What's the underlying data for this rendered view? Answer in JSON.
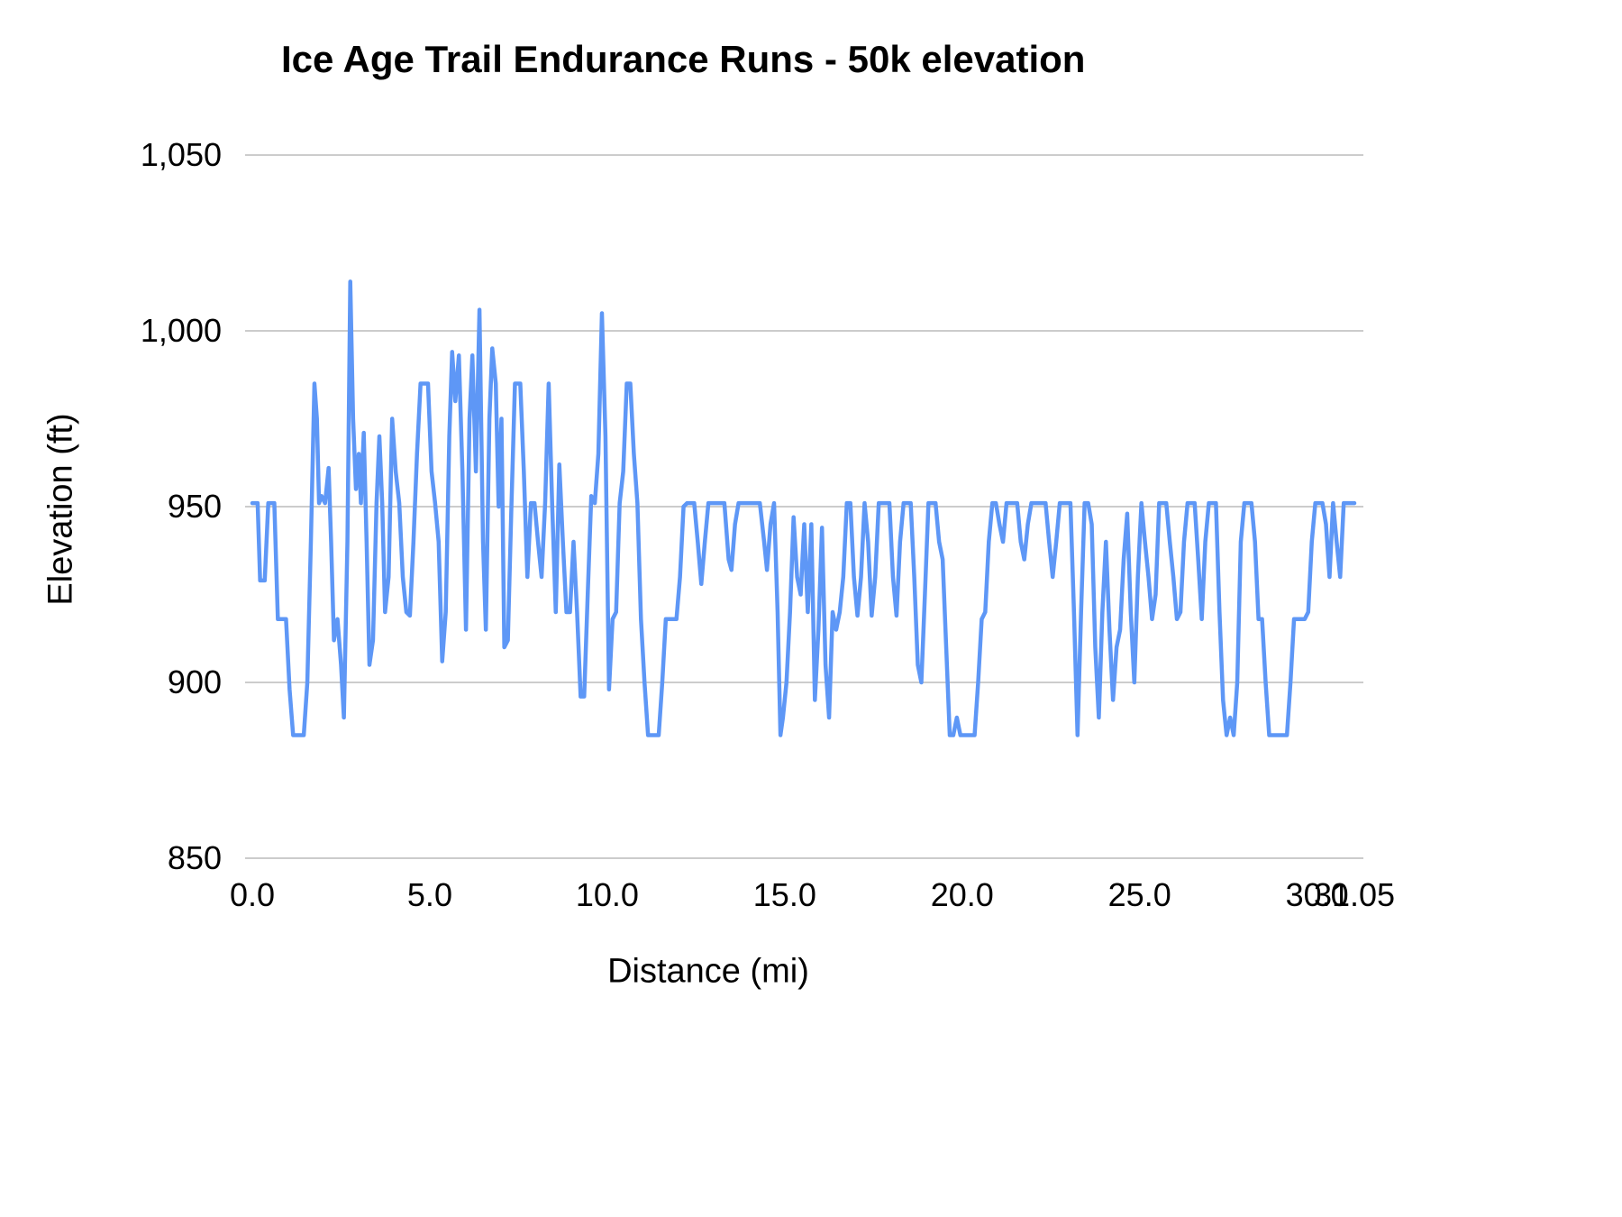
{
  "chart_data": {
    "type": "line",
    "title": "Ice Age Trail Endurance Runs - 50k elevation",
    "xlabel": "Distance (mi)",
    "ylabel": "Elevation (ft)",
    "xlim": [
      0,
      31.05
    ],
    "ylim": [
      850,
      1050
    ],
    "grid": true,
    "legend": "none",
    "line_color": "#5e97f6",
    "grid_color": "#cccccc",
    "text_color": "#000000",
    "y_ticks": [
      {
        "value": 850,
        "label": "850"
      },
      {
        "value": 900,
        "label": "900"
      },
      {
        "value": 950,
        "label": "950"
      },
      {
        "value": 1000,
        "label": "1,000"
      },
      {
        "value": 1050,
        "label": "1,050"
      }
    ],
    "x_ticks": [
      {
        "value": 0.0,
        "label": "0.0"
      },
      {
        "value": 5.0,
        "label": "5.0"
      },
      {
        "value": 10.0,
        "label": "10.0"
      },
      {
        "value": 15.0,
        "label": "15.0"
      },
      {
        "value": 20.0,
        "label": "20.0"
      },
      {
        "value": 25.0,
        "label": "25.0"
      },
      {
        "value": 30.0,
        "label": "30.0"
      },
      {
        "value": 31.05,
        "label": "31.05"
      }
    ],
    "series": [
      {
        "name": "elevation",
        "points": [
          [
            0.0,
            951
          ],
          [
            0.15,
            951
          ],
          [
            0.22,
            929
          ],
          [
            0.35,
            929
          ],
          [
            0.45,
            951
          ],
          [
            0.62,
            951
          ],
          [
            0.72,
            918
          ],
          [
            0.95,
            918
          ],
          [
            1.05,
            898
          ],
          [
            1.15,
            885
          ],
          [
            1.45,
            885
          ],
          [
            1.55,
            900
          ],
          [
            1.65,
            940
          ],
          [
            1.75,
            985
          ],
          [
            1.82,
            975
          ],
          [
            1.88,
            951
          ],
          [
            1.95,
            953
          ],
          [
            2.05,
            951
          ],
          [
            2.15,
            961
          ],
          [
            2.22,
            940
          ],
          [
            2.3,
            912
          ],
          [
            2.4,
            918
          ],
          [
            2.5,
            905
          ],
          [
            2.58,
            890
          ],
          [
            2.68,
            940
          ],
          [
            2.76,
            1014
          ],
          [
            2.84,
            975
          ],
          [
            2.92,
            955
          ],
          [
            3.0,
            965
          ],
          [
            3.06,
            951
          ],
          [
            3.14,
            971
          ],
          [
            3.22,
            940
          ],
          [
            3.3,
            905
          ],
          [
            3.4,
            912
          ],
          [
            3.5,
            951
          ],
          [
            3.58,
            970
          ],
          [
            3.66,
            951
          ],
          [
            3.74,
            920
          ],
          [
            3.84,
            930
          ],
          [
            3.94,
            975
          ],
          [
            4.04,
            960
          ],
          [
            4.14,
            951
          ],
          [
            4.24,
            930
          ],
          [
            4.34,
            920
          ],
          [
            4.44,
            919
          ],
          [
            4.54,
            940
          ],
          [
            4.64,
            965
          ],
          [
            4.74,
            985
          ],
          [
            4.95,
            985
          ],
          [
            5.05,
            960
          ],
          [
            5.15,
            951
          ],
          [
            5.25,
            940
          ],
          [
            5.35,
            906
          ],
          [
            5.45,
            920
          ],
          [
            5.55,
            970
          ],
          [
            5.63,
            994
          ],
          [
            5.72,
            980
          ],
          [
            5.82,
            993
          ],
          [
            5.92,
            960
          ],
          [
            6.02,
            915
          ],
          [
            6.12,
            975
          ],
          [
            6.2,
            993
          ],
          [
            6.3,
            960
          ],
          [
            6.4,
            1006
          ],
          [
            6.5,
            940
          ],
          [
            6.58,
            915
          ],
          [
            6.68,
            975
          ],
          [
            6.76,
            995
          ],
          [
            6.86,
            985
          ],
          [
            6.94,
            950
          ],
          [
            7.02,
            975
          ],
          [
            7.1,
            910
          ],
          [
            7.2,
            912
          ],
          [
            7.3,
            950
          ],
          [
            7.4,
            985
          ],
          [
            7.55,
            985
          ],
          [
            7.65,
            960
          ],
          [
            7.75,
            930
          ],
          [
            7.85,
            951
          ],
          [
            7.95,
            951
          ],
          [
            8.05,
            940
          ],
          [
            8.15,
            930
          ],
          [
            8.25,
            951
          ],
          [
            8.35,
            985
          ],
          [
            8.45,
            950
          ],
          [
            8.55,
            920
          ],
          [
            8.65,
            962
          ],
          [
            8.75,
            940
          ],
          [
            8.85,
            920
          ],
          [
            8.95,
            920
          ],
          [
            9.05,
            940
          ],
          [
            9.15,
            920
          ],
          [
            9.25,
            896
          ],
          [
            9.35,
            896
          ],
          [
            9.45,
            925
          ],
          [
            9.55,
            953
          ],
          [
            9.65,
            951
          ],
          [
            9.75,
            965
          ],
          [
            9.85,
            1005
          ],
          [
            9.95,
            970
          ],
          [
            10.05,
            898
          ],
          [
            10.15,
            918
          ],
          [
            10.25,
            920
          ],
          [
            10.35,
            951
          ],
          [
            10.45,
            960
          ],
          [
            10.55,
            985
          ],
          [
            10.65,
            985
          ],
          [
            10.75,
            965
          ],
          [
            10.85,
            951
          ],
          [
            10.95,
            918
          ],
          [
            11.05,
            900
          ],
          [
            11.15,
            885
          ],
          [
            11.45,
            885
          ],
          [
            11.55,
            900
          ],
          [
            11.65,
            918
          ],
          [
            11.95,
            918
          ],
          [
            12.05,
            930
          ],
          [
            12.15,
            950
          ],
          [
            12.25,
            951
          ],
          [
            12.45,
            951
          ],
          [
            12.55,
            940
          ],
          [
            12.65,
            928
          ],
          [
            12.75,
            940
          ],
          [
            12.85,
            951
          ],
          [
            12.95,
            951
          ],
          [
            13.3,
            951
          ],
          [
            13.42,
            935
          ],
          [
            13.5,
            932
          ],
          [
            13.6,
            945
          ],
          [
            13.7,
            951
          ],
          [
            13.95,
            951
          ],
          [
            14.3,
            951
          ],
          [
            14.42,
            940
          ],
          [
            14.5,
            932
          ],
          [
            14.6,
            945
          ],
          [
            14.7,
            951
          ],
          [
            14.8,
            920
          ],
          [
            14.88,
            885
          ],
          [
            14.95,
            890
          ],
          [
            15.05,
            900
          ],
          [
            15.15,
            920
          ],
          [
            15.25,
            947
          ],
          [
            15.35,
            930
          ],
          [
            15.45,
            925
          ],
          [
            15.55,
            945
          ],
          [
            15.65,
            920
          ],
          [
            15.75,
            945
          ],
          [
            15.85,
            895
          ],
          [
            15.95,
            915
          ],
          [
            16.05,
            944
          ],
          [
            16.15,
            905
          ],
          [
            16.25,
            890
          ],
          [
            16.35,
            920
          ],
          [
            16.45,
            915
          ],
          [
            16.55,
            920
          ],
          [
            16.65,
            930
          ],
          [
            16.75,
            951
          ],
          [
            16.85,
            951
          ],
          [
            16.95,
            930
          ],
          [
            17.05,
            919
          ],
          [
            17.15,
            930
          ],
          [
            17.25,
            951
          ],
          [
            17.35,
            940
          ],
          [
            17.45,
            919
          ],
          [
            17.55,
            930
          ],
          [
            17.65,
            951
          ],
          [
            17.95,
            951
          ],
          [
            18.05,
            930
          ],
          [
            18.15,
            919
          ],
          [
            18.25,
            940
          ],
          [
            18.35,
            951
          ],
          [
            18.55,
            951
          ],
          [
            18.65,
            930
          ],
          [
            18.75,
            905
          ],
          [
            18.85,
            900
          ],
          [
            18.95,
            925
          ],
          [
            19.05,
            951
          ],
          [
            19.25,
            951
          ],
          [
            19.35,
            940
          ],
          [
            19.45,
            935
          ],
          [
            19.55,
            910
          ],
          [
            19.65,
            885
          ],
          [
            19.75,
            885
          ],
          [
            19.85,
            890
          ],
          [
            19.95,
            885
          ],
          [
            20.05,
            885
          ],
          [
            20.35,
            885
          ],
          [
            20.45,
            900
          ],
          [
            20.55,
            918
          ],
          [
            20.65,
            920
          ],
          [
            20.75,
            940
          ],
          [
            20.85,
            951
          ],
          [
            20.95,
            951
          ],
          [
            21.05,
            945
          ],
          [
            21.15,
            940
          ],
          [
            21.25,
            951
          ],
          [
            21.55,
            951
          ],
          [
            21.65,
            940
          ],
          [
            21.75,
            935
          ],
          [
            21.85,
            945
          ],
          [
            21.95,
            951
          ],
          [
            22.35,
            951
          ],
          [
            22.45,
            940
          ],
          [
            22.55,
            930
          ],
          [
            22.65,
            940
          ],
          [
            22.75,
            951
          ],
          [
            22.95,
            951
          ],
          [
            23.05,
            951
          ],
          [
            23.15,
            920
          ],
          [
            23.25,
            885
          ],
          [
            23.35,
            920
          ],
          [
            23.45,
            951
          ],
          [
            23.55,
            951
          ],
          [
            23.65,
            945
          ],
          [
            23.75,
            910
          ],
          [
            23.85,
            890
          ],
          [
            23.95,
            920
          ],
          [
            24.05,
            940
          ],
          [
            24.15,
            915
          ],
          [
            24.25,
            895
          ],
          [
            24.35,
            910
          ],
          [
            24.45,
            915
          ],
          [
            24.55,
            935
          ],
          [
            24.65,
            948
          ],
          [
            24.75,
            920
          ],
          [
            24.85,
            900
          ],
          [
            24.95,
            930
          ],
          [
            25.05,
            951
          ],
          [
            25.15,
            940
          ],
          [
            25.25,
            930
          ],
          [
            25.35,
            918
          ],
          [
            25.45,
            925
          ],
          [
            25.55,
            951
          ],
          [
            25.75,
            951
          ],
          [
            25.85,
            940
          ],
          [
            25.95,
            930
          ],
          [
            26.05,
            918
          ],
          [
            26.15,
            920
          ],
          [
            26.25,
            940
          ],
          [
            26.35,
            951
          ],
          [
            26.55,
            951
          ],
          [
            26.65,
            935
          ],
          [
            26.75,
            918
          ],
          [
            26.85,
            940
          ],
          [
            26.95,
            951
          ],
          [
            27.15,
            951
          ],
          [
            27.25,
            920
          ],
          [
            27.35,
            895
          ],
          [
            27.45,
            885
          ],
          [
            27.55,
            890
          ],
          [
            27.65,
            885
          ],
          [
            27.75,
            900
          ],
          [
            27.85,
            940
          ],
          [
            27.95,
            951
          ],
          [
            28.15,
            951
          ],
          [
            28.25,
            940
          ],
          [
            28.35,
            918
          ],
          [
            28.45,
            918
          ],
          [
            28.55,
            900
          ],
          [
            28.65,
            885
          ],
          [
            28.95,
            885
          ],
          [
            29.15,
            885
          ],
          [
            29.25,
            900
          ],
          [
            29.35,
            918
          ],
          [
            29.65,
            918
          ],
          [
            29.75,
            920
          ],
          [
            29.85,
            940
          ],
          [
            29.95,
            951
          ],
          [
            30.15,
            951
          ],
          [
            30.25,
            945
          ],
          [
            30.35,
            930
          ],
          [
            30.45,
            951
          ],
          [
            30.55,
            940
          ],
          [
            30.65,
            930
          ],
          [
            30.75,
            951
          ],
          [
            30.9,
            951
          ],
          [
            31.05,
            951
          ]
        ]
      }
    ]
  }
}
